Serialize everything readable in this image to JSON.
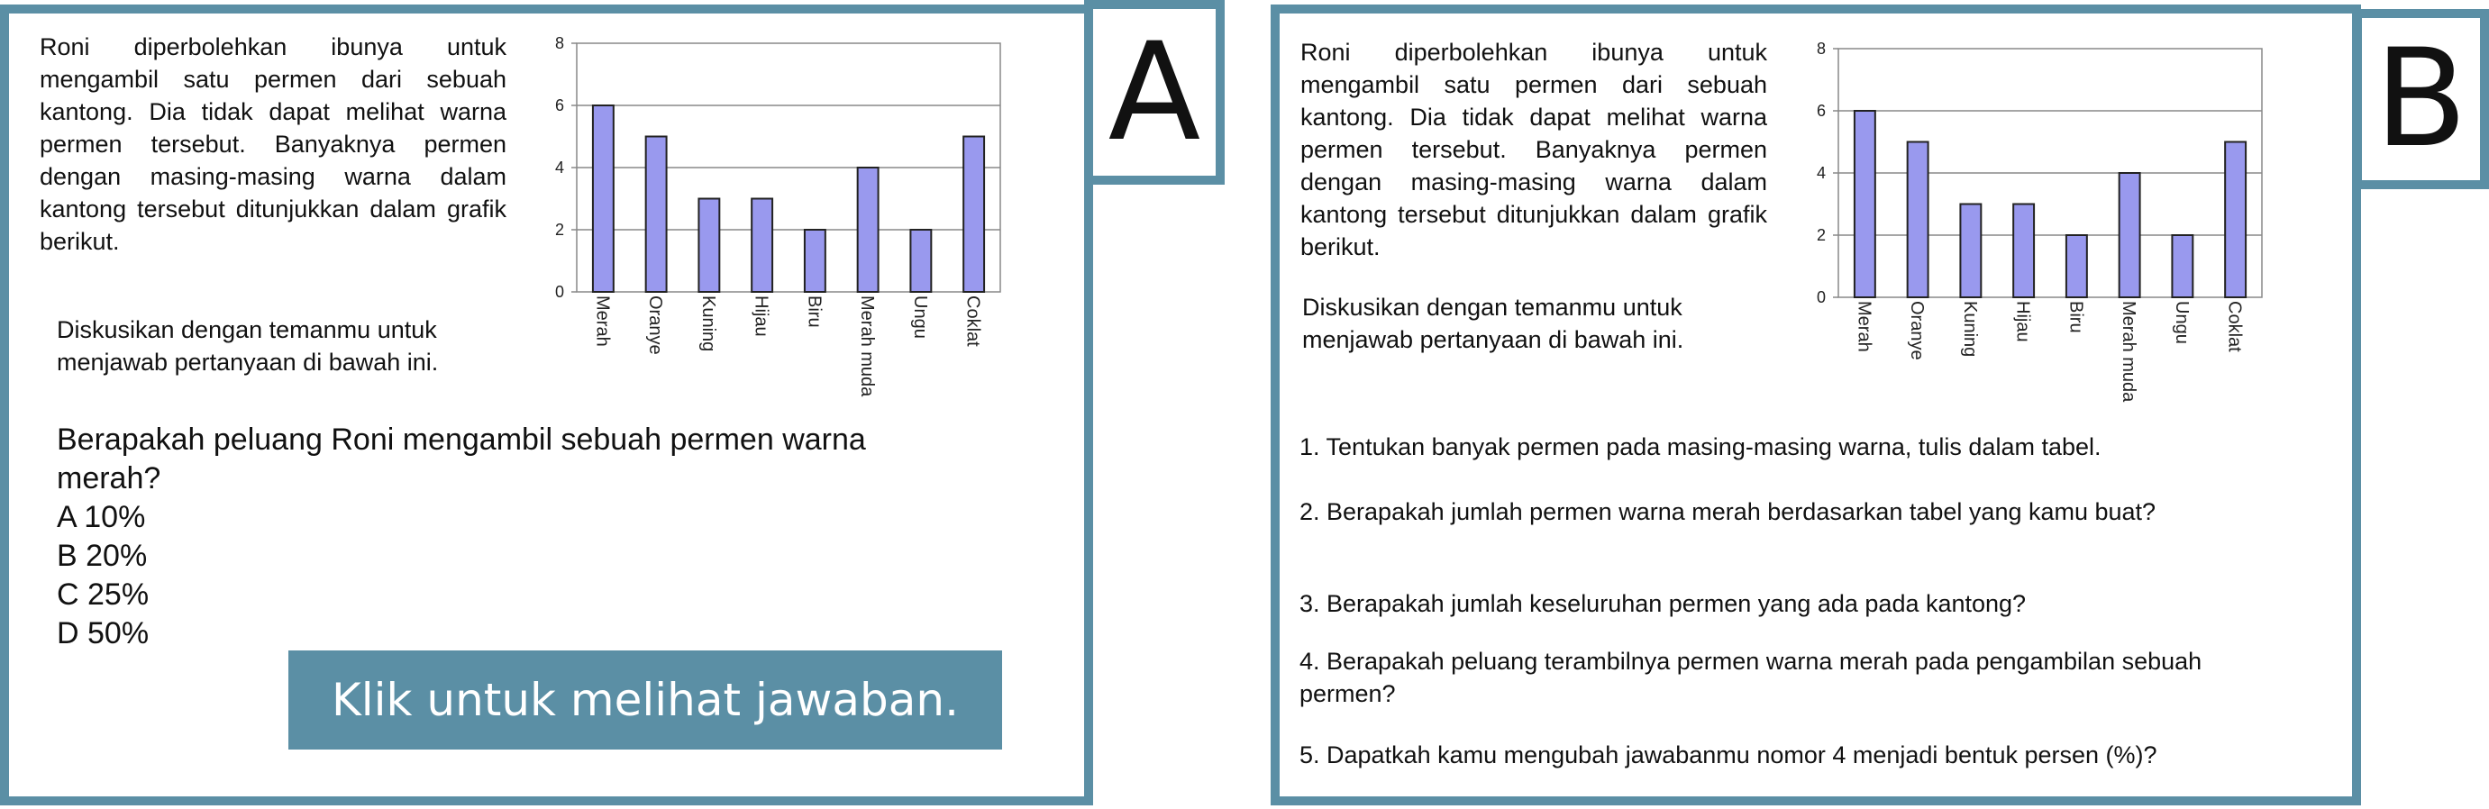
{
  "panel_a": {
    "tag": "A",
    "story": "Roni diperbolehkan ibunya untuk mengambil satu permen dari sebuah kantong. Dia tidak dapat melihat warna permen tersebut. Banyaknya permen dengan masing-masing warna dalam kantong tersebut ditunjukkan dalam grafik berikut.",
    "discussion": "Diskusikan dengan temanmu untuk menjawab pertanyaan di bawah ini.",
    "question": "Berapakah peluang Roni mengambil sebuah permen warna merah?",
    "options": [
      "A 10%",
      "B 20%",
      "C 25%",
      "D 50%"
    ],
    "button_label": "Klik untuk melihat jawaban."
  },
  "panel_b": {
    "tag": "B",
    "story": "Roni diperbolehkan ibunya untuk mengambil satu permen dari sebuah kantong. Dia tidak dapat melihat warna permen tersebut. Banyaknya permen dengan masing-masing warna dalam kantong tersebut ditunjukkan dalam grafik berikut.",
    "discussion": "Diskusikan dengan temanmu untuk menjawab pertanyaan di bawah ini.",
    "questions": [
      "1. Tentukan banyak permen pada masing-masing warna, tulis dalam tabel.",
      "2. Berapakah jumlah permen warna merah berdasarkan tabel yang kamu buat?",
      "3. Berapakah jumlah keseluruhan permen yang ada pada kantong?",
      "4. Berapakah peluang terambilnya permen warna merah pada pengambilan sebuah permen?",
      "5. Dapatkah kamu mengubah jawabanmu nomor 4 menjadi bentuk persen (%)?"
    ]
  },
  "colors": {
    "frame": "#5b8fa5",
    "bar_fill": "#9999ee",
    "bar_stroke": "#222222"
  },
  "chart_data": [
    {
      "type": "bar",
      "categories": [
        "Merah",
        "Oranye",
        "Kuning",
        "Hijau",
        "Biru",
        "Merah muda",
        "Ungu",
        "Coklat"
      ],
      "values": [
        6,
        5,
        3,
        3,
        2,
        4,
        2,
        5
      ],
      "yticks": [
        "0",
        "2",
        "4",
        "6",
        "8"
      ],
      "ylim": [
        0,
        8
      ],
      "grid": true
    },
    {
      "type": "bar",
      "categories": [
        "Merah",
        "Oranye",
        "Kuning",
        "Hijau",
        "Biru",
        "Merah muda",
        "Ungu",
        "Coklat"
      ],
      "values": [
        6,
        5,
        3,
        3,
        2,
        4,
        2,
        5
      ],
      "yticks": [
        "0",
        "2",
        "4",
        "6",
        "8"
      ],
      "ylim": [
        0,
        8
      ],
      "grid": true
    }
  ]
}
